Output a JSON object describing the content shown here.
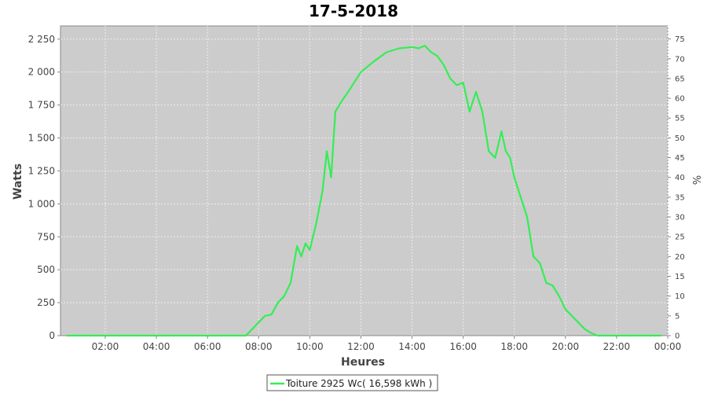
{
  "chart_data": {
    "type": "line",
    "title": "17-5-2018",
    "xlabel": "Heures",
    "ylabel": "Watts",
    "y2label": "%",
    "x_range": [
      "00:15",
      "24:00"
    ],
    "ylim": [
      0,
      2350
    ],
    "y2lim": [
      0,
      78.3
    ],
    "x_ticks": [
      "02:00",
      "04:00",
      "06:00",
      "08:00",
      "10:00",
      "12:00",
      "14:00",
      "16:00",
      "18:00",
      "20:00",
      "22:00",
      "00:00"
    ],
    "y_ticks": [
      "0",
      "250",
      "500",
      "750",
      "1 000",
      "1 250",
      "1 500",
      "1 750",
      "2 000",
      "2 250"
    ],
    "y2_ticks": [
      "0",
      "5",
      "10",
      "15",
      "20",
      "25",
      "30",
      "35",
      "40",
      "45",
      "50",
      "55",
      "60",
      "65",
      "70",
      "75"
    ],
    "grid": true,
    "legend_position": "bottom",
    "colors": {
      "series": "#33ee55",
      "plot_bg": "#cccccc",
      "grid": "#eeeeee"
    },
    "series": [
      {
        "name": "Toiture 2925 Wc( 16,598 kWh )",
        "x": [
          "00:30",
          "07:30",
          "07:45",
          "08:00",
          "08:15",
          "08:30",
          "08:45",
          "09:00",
          "09:15",
          "09:30",
          "09:40",
          "09:50",
          "10:00",
          "10:15",
          "10:30",
          "10:40",
          "10:50",
          "11:00",
          "11:15",
          "11:30",
          "12:00",
          "12:30",
          "13:00",
          "13:30",
          "14:00",
          "14:15",
          "14:30",
          "14:45",
          "15:00",
          "15:15",
          "15:30",
          "15:45",
          "16:00",
          "16:15",
          "16:30",
          "16:45",
          "17:00",
          "17:15",
          "17:30",
          "17:40",
          "17:50",
          "18:00",
          "18:15",
          "18:30",
          "18:45",
          "19:00",
          "19:15",
          "19:30",
          "19:45",
          "20:00",
          "20:15",
          "20:30",
          "20:45",
          "21:00",
          "21:15",
          "21:30",
          "23:45"
        ],
        "y": [
          0,
          0,
          50,
          100,
          150,
          160,
          250,
          300,
          400,
          680,
          600,
          700,
          650,
          850,
          1100,
          1400,
          1200,
          1700,
          1780,
          1850,
          2000,
          2080,
          2150,
          2180,
          2190,
          2180,
          2200,
          2150,
          2120,
          2050,
          1950,
          1900,
          1920,
          1700,
          1850,
          1700,
          1400,
          1350,
          1550,
          1400,
          1350,
          1200,
          1050,
          900,
          600,
          550,
          400,
          380,
          300,
          200,
          150,
          100,
          50,
          20,
          0,
          0,
          0
        ]
      }
    ]
  }
}
